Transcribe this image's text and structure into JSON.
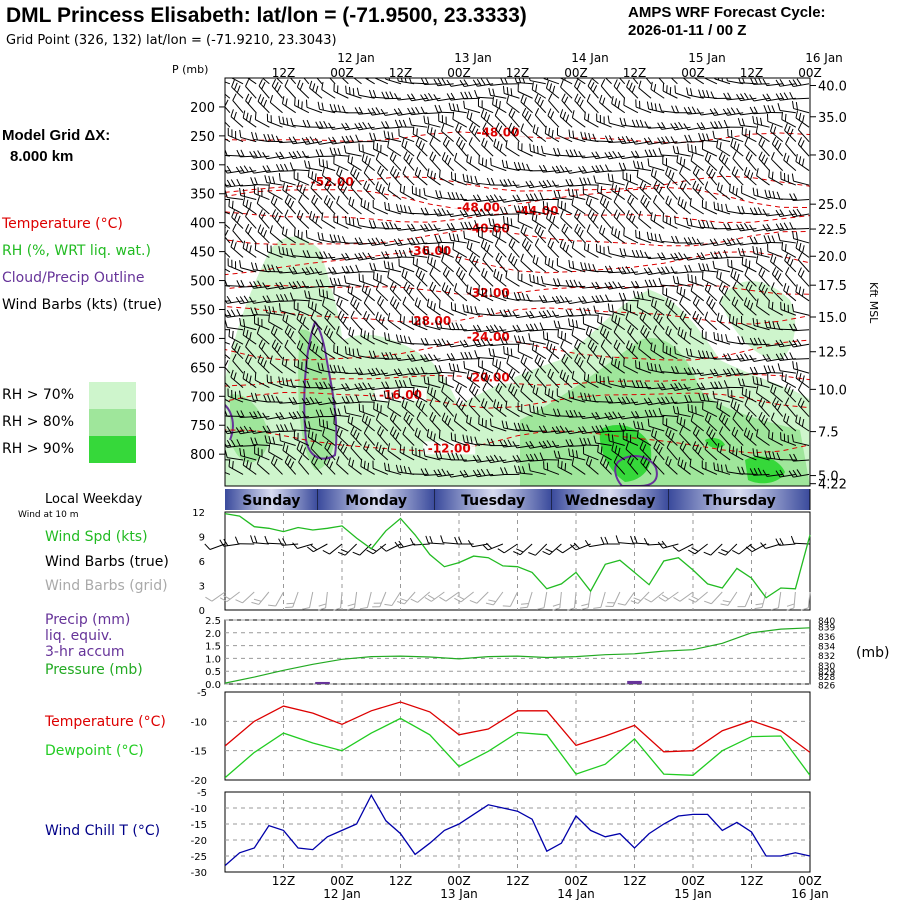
{
  "header": {
    "title": "DML Princess Elisabeth:  lat/lon = (-71.9500, 23.3333)",
    "subtitle": "Grid Point (326, 132) lat/lon = (-71.9210, 23.3043)",
    "cycle_line1": "AMPS WRF Forecast Cycle:",
    "cycle_line2": "2026-01-11 / 00  Z"
  },
  "model_grid": {
    "label": "Model Grid ΔX:",
    "value": "8.000 km"
  },
  "colors": {
    "temperature": "#dd0000",
    "rh": "#22bb22",
    "cloud": "#663399",
    "wind": "#000000",
    "wind_grid": "#aaaaaa",
    "precip": "#663399",
    "pressure": "#22aa22",
    "dewpoint": "#22cc22",
    "windchill": "#0000aa",
    "rh70": "#cef5cc",
    "rh80": "#9fe69b",
    "rh90": "#36d83a",
    "weekday_band": "#4a5aa8"
  },
  "legend": {
    "temperature": "Temperature (°C)",
    "rh": "RH (%, WRT liq. wat.)",
    "cloud": "Cloud/Precip Outline",
    "wind": "Wind Barbs (kts) (true)",
    "rh70": "RH > 70%",
    "rh80": "RH > 80%",
    "rh90": "RH > 90%"
  },
  "cross_section": {
    "p_axis_label": "P (mb)",
    "kft_label": "Kft MSL"
  },
  "weekday": {
    "title": "Local Weekday",
    "sub": "Wind at 10 m",
    "days": [
      "Sunday",
      "Monday",
      "Tuesday",
      "Wednesday",
      "Thursday"
    ]
  },
  "panel_labels": {
    "wind_spd": "Wind Spd (kts)",
    "wind_true": "Wind Barbs (true)",
    "wind_grid": "Wind Barbs (grid)",
    "precip1": "Precip (mm)",
    "precip2": "liq. equiv.",
    "precip3": "3-hr accum",
    "pressure": "Pressure (mb)",
    "mb_unit": "(mb)",
    "temperature": "Temperature (°C)",
    "dewpoint": "Dewpoint (°C)",
    "windchill": "Wind Chill T (°C)"
  },
  "chart_data": {
    "type": "meteogram",
    "time_axis": {
      "hours": [
        0,
        12,
        24,
        36,
        48,
        60,
        72,
        84,
        96,
        108,
        120
      ],
      "ticks": [
        "12Z",
        "00Z",
        "12Z",
        "00Z",
        "12Z",
        "00Z",
        "12Z",
        "00Z",
        "12Z",
        "00Z"
      ],
      "tick_hours": [
        12,
        24,
        36,
        48,
        60,
        72,
        84,
        96,
        108,
        120
      ],
      "dates": [
        "12 Jan",
        "13 Jan",
        "14 Jan",
        "15 Jan",
        "16 Jan"
      ],
      "date_hours": [
        24,
        48,
        72,
        96,
        120
      ],
      "range": [
        0,
        120
      ]
    },
    "cross_section": {
      "pressure_ticks": [
        "200",
        "250",
        "300",
        "350",
        "400",
        "450",
        "500",
        "550",
        "600",
        "650",
        "700",
        "750",
        "800"
      ],
      "pressure_values": [
        200,
        250,
        300,
        350,
        400,
        450,
        500,
        550,
        600,
        650,
        700,
        750,
        800
      ],
      "kft_ticks": [
        "40.0",
        "35.0",
        "30.0",
        "25.0",
        "22.5",
        "20.0",
        "17.5",
        "15.0",
        "12.5",
        "10.0",
        "7.5",
        "5.0",
        "4.22"
      ],
      "kft_pressure": [
        163,
        217,
        283,
        368,
        411,
        458,
        508,
        563,
        623,
        688,
        761,
        837,
        851
      ],
      "p_range": [
        150,
        855
      ],
      "isotherms": [
        {
          "label": "-48.00",
          "p": 253,
          "h": 56
        },
        {
          "label": "-52.00",
          "p": 335,
          "h": 22
        },
        {
          "label": "-48.00",
          "p": 357,
          "h": 52
        },
        {
          "label": "-44.00",
          "p": 390,
          "h": 64
        },
        {
          "label": "-40.00",
          "p": 428,
          "h": 54
        },
        {
          "label": "-36.00",
          "p": 470,
          "h": 42
        },
        {
          "label": "-32.00",
          "p": 515,
          "h": 54
        },
        {
          "label": "-28.00",
          "p": 560,
          "h": 42
        },
        {
          "label": "-24.00",
          "p": 622,
          "h": 54
        },
        {
          "label": "-20.00",
          "p": 672,
          "h": 54
        },
        {
          "label": "-16.00",
          "p": 705,
          "h": 36
        },
        {
          "label": "-12.00",
          "p": 778,
          "h": 46
        }
      ]
    },
    "wind_speed": {
      "ylim": [
        0,
        12
      ],
      "yticks": [
        "12",
        "9",
        "6",
        "3",
        "0"
      ],
      "ytick_values": [
        12,
        9,
        6,
        3,
        0
      ],
      "hours": [
        0,
        3,
        6,
        9,
        12,
        15,
        18,
        21,
        24,
        27,
        30,
        33,
        36,
        39,
        42,
        45,
        48,
        51,
        54,
        57,
        60,
        63,
        66,
        69,
        72,
        75,
        78,
        81,
        84,
        87,
        90,
        93,
        96,
        99,
        102,
        105,
        108,
        111,
        114,
        117,
        120
      ],
      "values": [
        11.8,
        11.5,
        10.2,
        10.0,
        9.6,
        10.1,
        9.8,
        10.0,
        10.3,
        8.8,
        7.5,
        9.7,
        11.2,
        9.2,
        6.8,
        5.3,
        5.8,
        6.6,
        6.4,
        5.4,
        5.3,
        4.6,
        2.6,
        3.2,
        4.6,
        2.3,
        5.6,
        6.1,
        4.6,
        3.1,
        6.0,
        6.4,
        4.9,
        3.2,
        2.7,
        5.1,
        3.9,
        1.5,
        2.7,
        2.6,
        9.2
      ]
    },
    "precip_pressure": {
      "precip_ylim": [
        0,
        2.5
      ],
      "precip_ticks": [
        "2.5",
        "2.0",
        "1.5",
        "1.0",
        "0.5",
        "0.0"
      ],
      "precip_tick_values": [
        2.5,
        2.0,
        1.5,
        1.0,
        0.5,
        0.0
      ],
      "precip_events": [
        {
          "h": 20,
          "w": 3,
          "v": 0.08
        },
        {
          "h": 84,
          "w": 3,
          "v": 0.12
        }
      ],
      "pressure_ylim": [
        826,
        840
      ],
      "pressure_ticks": [
        "840",
        "839",
        "836",
        "834",
        "832",
        "830",
        "829",
        "828",
        "826"
      ],
      "pressure_tick_values": [
        840,
        838.6,
        836.5,
        834.4,
        832.3,
        830.2,
        828.8,
        827.7,
        825.9
      ],
      "pressure_hours": [
        0,
        6,
        12,
        18,
        24,
        30,
        36,
        42,
        48,
        54,
        60,
        66,
        72,
        78,
        84,
        90,
        96,
        102,
        108,
        114,
        120
      ],
      "pressure_values": [
        826.2,
        827.5,
        829.0,
        830.3,
        831.4,
        832.0,
        832.1,
        831.9,
        831.5,
        832.0,
        832.1,
        831.8,
        832.0,
        832.4,
        832.6,
        833.2,
        833.5,
        834.9,
        837.2,
        838.0,
        838.3
      ]
    },
    "temperature": {
      "ylim": [
        -20,
        -5
      ],
      "yticks": [
        "-5",
        "-10",
        "-15",
        "-20"
      ],
      "ytick_values": [
        -5,
        -10,
        -15,
        -20
      ],
      "hours": [
        0,
        6,
        12,
        18,
        24,
        30,
        36,
        42,
        48,
        54,
        60,
        66,
        72,
        78,
        84,
        90,
        96,
        102,
        108,
        114,
        120
      ],
      "temperature": [
        -14.2,
        -10.0,
        -7.4,
        -8.6,
        -10.5,
        -8.2,
        -6.7,
        -8.4,
        -12.3,
        -11.3,
        -8.2,
        -8.2,
        -14.1,
        -12.5,
        -10.7,
        -15.2,
        -15.0,
        -11.6,
        -9.9,
        -11.6,
        -15.3
      ],
      "dewpoint": [
        -19.6,
        -15.3,
        -12.0,
        -13.7,
        -15.0,
        -12.0,
        -9.5,
        -12.3,
        -17.7,
        -15.1,
        -11.9,
        -12.3,
        -19.0,
        -17.3,
        -13.0,
        -19.0,
        -19.2,
        -15.0,
        -12.6,
        -12.5,
        -19.2
      ]
    },
    "windchill": {
      "ylim": [
        -30,
        -5
      ],
      "yticks": [
        "-5",
        "-10",
        "-15",
        "-20",
        "-25",
        "-30"
      ],
      "ytick_values": [
        -5,
        -10,
        -15,
        -20,
        -25,
        -30
      ],
      "hours": [
        0,
        3,
        6,
        9,
        12,
        15,
        18,
        21,
        24,
        27,
        30,
        33,
        36,
        39,
        42,
        45,
        48,
        51,
        54,
        57,
        60,
        63,
        66,
        69,
        72,
        75,
        78,
        81,
        84,
        87,
        90,
        93,
        96,
        99,
        102,
        105,
        108,
        111,
        114,
        117,
        120
      ],
      "values": [
        -28.0,
        -24.0,
        -22.5,
        -15.5,
        -17.0,
        -22.5,
        -23.0,
        -19.0,
        -17.0,
        -15.0,
        -6.0,
        -14.0,
        -18.0,
        -24.5,
        -21.0,
        -17.0,
        -15.0,
        -12.0,
        -9.0,
        -10.0,
        -11.0,
        -13.5,
        -23.5,
        -21.0,
        -12.5,
        -17.0,
        -19.0,
        -18.0,
        -22.5,
        -18.0,
        -15.0,
        -12.5,
        -12.0,
        -12.0,
        -17.0,
        -14.5,
        -17.5,
        -25.0,
        -25.0,
        -24.0,
        -25.0
      ]
    }
  }
}
